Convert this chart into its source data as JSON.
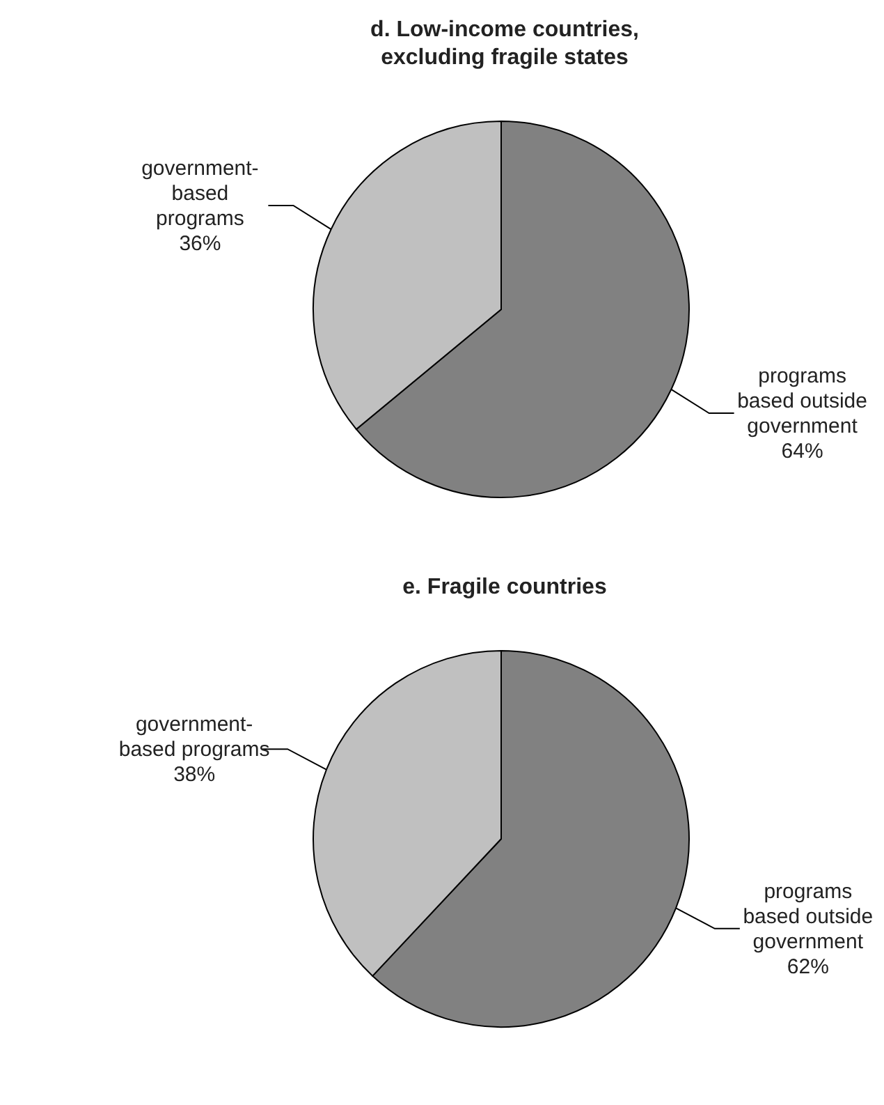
{
  "chart_data": [
    {
      "type": "pie",
      "title": "d. Low-income countries, excluding fragile states",
      "categories": [
        "programs based outside government",
        "government-based programs"
      ],
      "values": [
        64,
        36
      ],
      "value_labels": [
        "64%",
        "36%"
      ],
      "colors": [
        "#818181",
        "#c0c0c0"
      ]
    },
    {
      "type": "pie",
      "title": "e. Fragile countries",
      "categories": [
        "programs based outside government",
        "government-based programs"
      ],
      "values": [
        62,
        38
      ],
      "value_labels": [
        "62%",
        "38%"
      ],
      "colors": [
        "#818181",
        "#c0c0c0"
      ]
    }
  ]
}
